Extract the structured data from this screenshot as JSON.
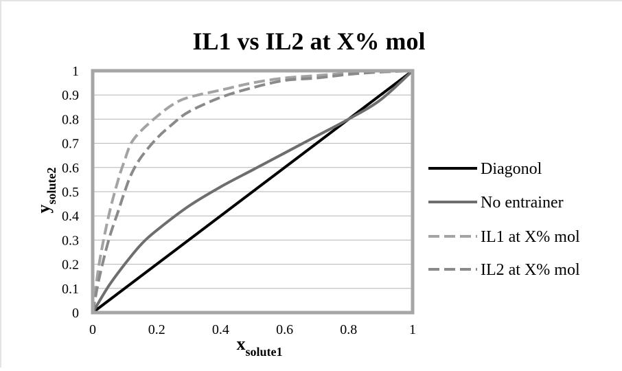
{
  "chart_data": {
    "type": "line",
    "title": "IL1 vs IL2 at X% mol",
    "xlabel": {
      "main": "x",
      "sub": "solute1"
    },
    "ylabel": {
      "main": "y",
      "sub": "solute2"
    },
    "xlim": [
      0,
      1
    ],
    "ylim": [
      0,
      1
    ],
    "x_ticks": [
      "0",
      "0.2",
      "0.4",
      "0.6",
      "0.8",
      "1"
    ],
    "y_ticks": [
      "0",
      "0.1",
      "0.2",
      "0.3",
      "0.4",
      "0.5",
      "0.6",
      "0.7",
      "0.8",
      "0.9",
      "1"
    ],
    "grid": "horizontal",
    "legend_position": "right",
    "plot_background": "#ffffff",
    "plot_border_color": "#a6a6a6",
    "series": [
      {
        "name": "Diagonol",
        "color": "#000000",
        "style": "solid",
        "points": [
          [
            0,
            0
          ],
          [
            1,
            1
          ]
        ]
      },
      {
        "name": "No entrainer",
        "color": "#6e6e6e",
        "style": "solid",
        "points": [
          [
            0,
            0
          ],
          [
            0.05,
            0.11
          ],
          [
            0.1,
            0.2
          ],
          [
            0.15,
            0.28
          ],
          [
            0.2,
            0.34
          ],
          [
            0.3,
            0.44
          ],
          [
            0.4,
            0.52
          ],
          [
            0.5,
            0.59
          ],
          [
            0.6,
            0.66
          ],
          [
            0.7,
            0.73
          ],
          [
            0.8,
            0.8
          ],
          [
            0.9,
            0.88
          ],
          [
            1,
            1
          ]
        ]
      },
      {
        "name": "IL1 at X% mol",
        "color": "#a3a3a3",
        "style": "dashed",
        "points": [
          [
            0,
            0
          ],
          [
            0.02,
            0.2
          ],
          [
            0.05,
            0.4
          ],
          [
            0.08,
            0.55
          ],
          [
            0.1,
            0.63
          ],
          [
            0.12,
            0.7
          ],
          [
            0.15,
            0.75
          ],
          [
            0.2,
            0.81
          ],
          [
            0.25,
            0.86
          ],
          [
            0.3,
            0.89
          ],
          [
            0.4,
            0.92
          ],
          [
            0.5,
            0.95
          ],
          [
            0.6,
            0.97
          ],
          [
            0.7,
            0.98
          ],
          [
            0.8,
            0.99
          ],
          [
            0.9,
            0.995
          ],
          [
            1,
            1
          ]
        ]
      },
      {
        "name": "IL2 at X% mol",
        "color": "#8a8a8a",
        "style": "dashed",
        "points": [
          [
            0,
            0
          ],
          [
            0.02,
            0.14
          ],
          [
            0.05,
            0.3
          ],
          [
            0.08,
            0.42
          ],
          [
            0.1,
            0.5
          ],
          [
            0.12,
            0.57
          ],
          [
            0.15,
            0.64
          ],
          [
            0.2,
            0.72
          ],
          [
            0.25,
            0.78
          ],
          [
            0.3,
            0.83
          ],
          [
            0.4,
            0.89
          ],
          [
            0.5,
            0.93
          ],
          [
            0.6,
            0.96
          ],
          [
            0.7,
            0.97
          ],
          [
            0.8,
            0.985
          ],
          [
            0.9,
            0.995
          ],
          [
            1,
            1
          ]
        ]
      }
    ]
  }
}
